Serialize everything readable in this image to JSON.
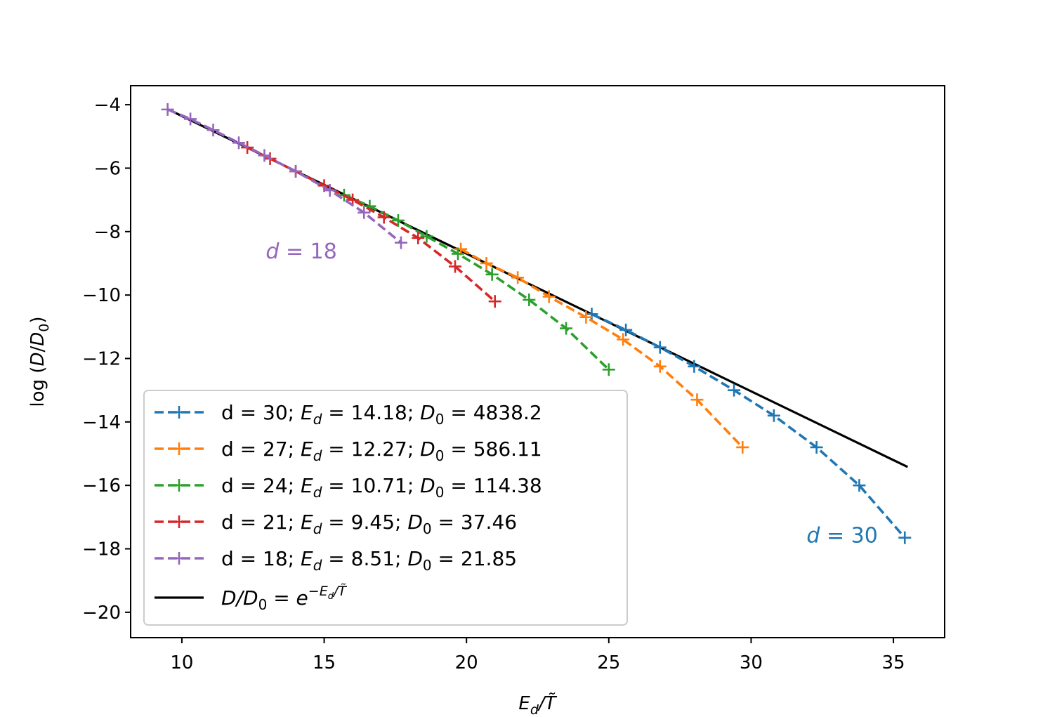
{
  "chart_data": {
    "type": "line",
    "title": "",
    "xlabel": "E_d/T̃",
    "ylabel": "log(D/D₀)",
    "xlim": [
      8.2,
      36.8
    ],
    "ylim": [
      -20.8,
      -3.4
    ],
    "xticks": [
      10,
      15,
      20,
      25,
      30,
      35
    ],
    "yticks": [
      -4,
      -6,
      -8,
      -10,
      -12,
      -14,
      -16,
      -18,
      -20
    ],
    "xtick_labels": [
      "10",
      "15",
      "20",
      "25",
      "30",
      "35"
    ],
    "ytick_labels": [
      "−4",
      "−6",
      "−8",
      "−10",
      "−12",
      "−14",
      "−16",
      "−18",
      "−20"
    ],
    "legend_position": "lower-left",
    "series": [
      {
        "name": "d = 30; E_d = 14.18; D_0 = 4838.2",
        "label": {
          "d": "d = 30; ",
          "ed": "E",
          "ed_sub": "d",
          "ed_val": " = 14.18; ",
          "d0": "D",
          "d0_sub": "0",
          "d0_val": " = 4838.2"
        },
        "color": "#1f77b4",
        "x": [
          24.4,
          25.6,
          26.8,
          28.0,
          29.4,
          30.8,
          32.3,
          33.8,
          35.4
        ],
        "y": [
          -10.6,
          -11.1,
          -11.65,
          -12.25,
          -13.0,
          -13.8,
          -14.8,
          -16.0,
          -17.65
        ]
      },
      {
        "name": "d = 27; E_d = 12.27; D_0 = 586.11",
        "label": {
          "d": "d = 27; ",
          "ed": "E",
          "ed_sub": "d",
          "ed_val": " = 12.27; ",
          "d0": "D",
          "d0_sub": "0",
          "d0_val": " = 586.11"
        },
        "color": "#ff7f0e",
        "x": [
          19.8,
          20.7,
          21.8,
          22.9,
          24.2,
          25.5,
          26.8,
          28.1,
          29.7
        ],
        "y": [
          -8.55,
          -9.0,
          -9.45,
          -10.05,
          -10.7,
          -11.4,
          -12.25,
          -13.3,
          -14.8
        ]
      },
      {
        "name": "d = 24; E_d = 10.71; D_0 = 114.38",
        "label": {
          "d": "d = 24; ",
          "ed": "E",
          "ed_sub": "d",
          "ed_val": " = 10.71; ",
          "d0": "D",
          "d0_sub": "0",
          "d0_val": " = 114.38"
        },
        "color": "#2ca02c",
        "x": [
          15.7,
          16.6,
          17.6,
          18.6,
          19.7,
          20.9,
          22.2,
          23.5,
          25.0
        ],
        "y": [
          -6.85,
          -7.2,
          -7.65,
          -8.15,
          -8.7,
          -9.35,
          -10.15,
          -11.05,
          -12.35
        ]
      },
      {
        "name": "d = 21; E_d = 9.45; D_0 = 37.46",
        "label": {
          "d": "d = 21; ",
          "ed": "E",
          "ed_sub": "d",
          "ed_val": " = 9.45; ",
          "d0": "D",
          "d0_sub": "0",
          "d0_val": " = 37.46"
        },
        "color": "#d62728",
        "x": [
          12.3,
          13.1,
          14.0,
          15.0,
          16.0,
          17.1,
          18.3,
          19.6,
          21.0
        ],
        "y": [
          -5.35,
          -5.7,
          -6.1,
          -6.55,
          -7.0,
          -7.55,
          -8.2,
          -9.1,
          -10.2
        ]
      },
      {
        "name": "d = 18; E_d = 8.51; D_0 = 21.85",
        "label": {
          "d": "d = 18; ",
          "ed": "E",
          "ed_sub": "d",
          "ed_val": " = 8.51; ",
          "d0": "D",
          "d0_sub": "0",
          "d0_val": " = 21.85"
        },
        "color": "#9467bd",
        "x": [
          9.5,
          10.3,
          11.1,
          12.0,
          12.9,
          14.0,
          15.2,
          16.4,
          17.7
        ],
        "y": [
          -4.15,
          -4.45,
          -4.8,
          -5.2,
          -5.6,
          -6.1,
          -6.7,
          -7.4,
          -8.35
        ]
      }
    ],
    "fit_line": {
      "name": "D/D_0 = e^{-E_d/T̃}",
      "label": {
        "lhs": "D",
        "lhs_sub": "0",
        "eq": "D/D",
        "rhs": " = e",
        "exp": "−E",
        "exp_sub": "d",
        "exp_tail": "/T̃"
      },
      "color": "#000000",
      "x": [
        9.5,
        35.5
      ],
      "y": [
        -4.14,
        -15.42
      ]
    },
    "annotations": [
      {
        "text": "d = 18",
        "x": 14.2,
        "y": -8.85,
        "color": "#9467bd"
      },
      {
        "text": "d = 30",
        "x": 33.2,
        "y": -17.8,
        "color": "#1f77b4"
      }
    ]
  }
}
